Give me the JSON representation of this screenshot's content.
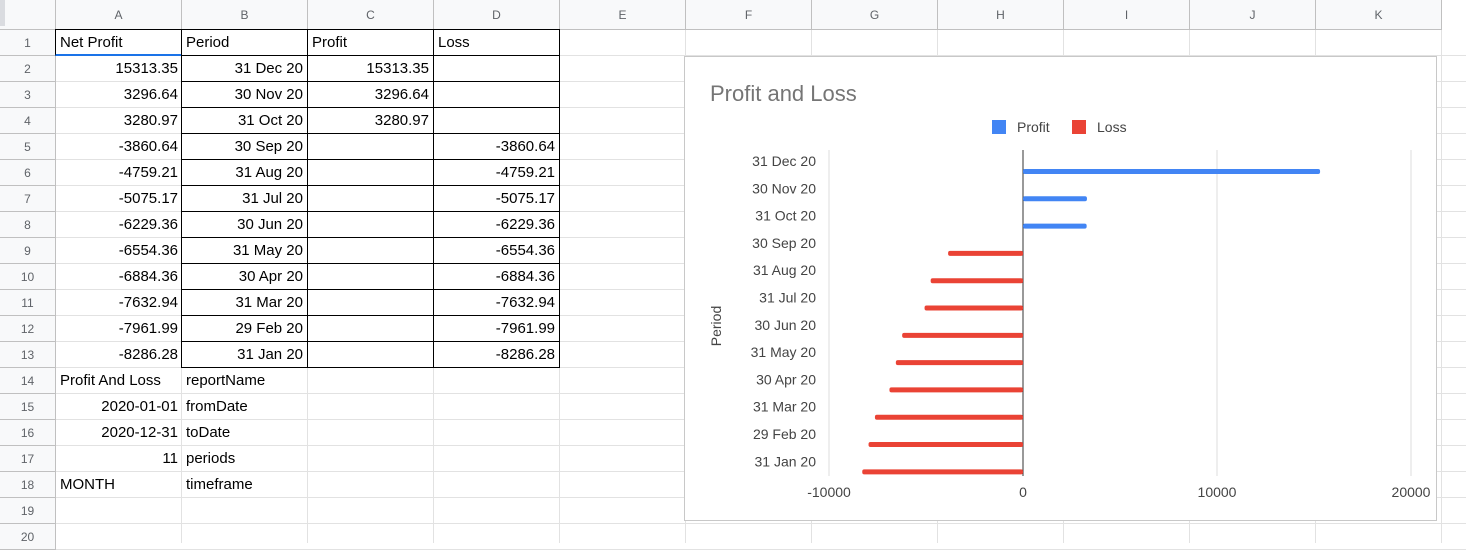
{
  "columns": [
    "A",
    "B",
    "C",
    "D",
    "E",
    "F",
    "G",
    "H",
    "I",
    "J",
    "K"
  ],
  "rows": [
    "1",
    "2",
    "3",
    "4",
    "5",
    "6",
    "7",
    "8",
    "9",
    "10",
    "11",
    "12",
    "13",
    "14",
    "15",
    "16",
    "17",
    "18",
    "19",
    "20"
  ],
  "table": {
    "headers": [
      "Net Profit",
      "Period",
      "Profit",
      "Loss"
    ],
    "rows": [
      {
        "net": "15313.35",
        "period": "31 Dec 20",
        "profit": "15313.35",
        "loss": ""
      },
      {
        "net": "3296.64",
        "period": "30 Nov 20",
        "profit": "3296.64",
        "loss": ""
      },
      {
        "net": "3280.97",
        "period": "31 Oct 20",
        "profit": "3280.97",
        "loss": ""
      },
      {
        "net": "-3860.64",
        "period": "30 Sep 20",
        "profit": "",
        "loss": "-3860.64"
      },
      {
        "net": "-4759.21",
        "period": "31 Aug 20",
        "profit": "",
        "loss": "-4759.21"
      },
      {
        "net": "-5075.17",
        "period": "31 Jul 20",
        "profit": "",
        "loss": "-5075.17"
      },
      {
        "net": "-6229.36",
        "period": "30 Jun 20",
        "profit": "",
        "loss": "-6229.36"
      },
      {
        "net": "-6554.36",
        "period": "31 May 20",
        "profit": "",
        "loss": "-6554.36"
      },
      {
        "net": "-6884.36",
        "period": "30 Apr 20",
        "profit": "",
        "loss": "-6884.36"
      },
      {
        "net": "-7632.94",
        "period": "31 Mar 20",
        "profit": "",
        "loss": "-7632.94"
      },
      {
        "net": "-7961.99",
        "period": "29 Feb 20",
        "profit": "",
        "loss": "-7961.99"
      },
      {
        "net": "-8286.28",
        "period": "31 Jan 20",
        "profit": "",
        "loss": "-8286.28"
      }
    ]
  },
  "params": [
    {
      "value": "Profit And Loss",
      "label": "reportName",
      "align": "left"
    },
    {
      "value": "2020-01-01",
      "label": "fromDate",
      "align": "right"
    },
    {
      "value": "2020-12-31",
      "label": "toDate",
      "align": "right"
    },
    {
      "value": "11",
      "label": "periods",
      "align": "right"
    },
    {
      "value": "MONTH",
      "label": "timeframe",
      "align": "left"
    }
  ],
  "colors": {
    "profit": "#4285f4",
    "loss": "#ea4335",
    "selection": "#1a73e8"
  },
  "chart_data": {
    "type": "bar",
    "orientation": "horizontal",
    "title": "Profit and Loss",
    "xlabel": "",
    "ylabel": "Period",
    "categories": [
      "31 Dec 20",
      "30 Nov 20",
      "31 Oct 20",
      "30 Sep 20",
      "31 Aug 20",
      "31 Jul 20",
      "30 Jun 20",
      "31 May 20",
      "30 Apr 20",
      "31 Mar 20",
      "29 Feb 20",
      "31 Jan 20"
    ],
    "series": [
      {
        "name": "Profit",
        "color": "#4285f4",
        "values": [
          15313.35,
          3296.64,
          3280.97,
          null,
          null,
          null,
          null,
          null,
          null,
          null,
          null,
          null
        ]
      },
      {
        "name": "Loss",
        "color": "#ea4335",
        "values": [
          null,
          null,
          null,
          -3860.64,
          -4759.21,
          -5075.17,
          -6229.36,
          -6554.36,
          -6884.36,
          -7632.94,
          -7961.99,
          -8286.28
        ]
      }
    ],
    "xlim": [
      -10000,
      20000
    ],
    "xticks": [
      -10000,
      0,
      10000,
      20000
    ],
    "xtick_labels": [
      "-10000",
      "0",
      "10000",
      "20000"
    ],
    "legend": "top",
    "grid": true
  }
}
